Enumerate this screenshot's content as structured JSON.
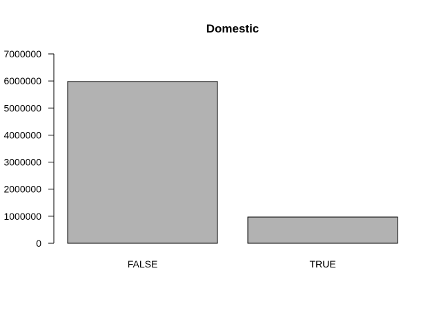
{
  "chart_data": {
    "type": "bar",
    "title": "Domestic",
    "xlabel": "",
    "ylabel": "",
    "categories": [
      "FALSE",
      "TRUE"
    ],
    "values": [
      5980000,
      970000
    ],
    "ylim": [
      0,
      7000000
    ],
    "yticks": [
      0,
      1000000,
      2000000,
      3000000,
      4000000,
      5000000,
      6000000,
      7000000
    ],
    "ytick_labels": [
      "0",
      "1000000",
      "2000000",
      "3000000",
      "4000000",
      "5000000",
      "6000000",
      "7000000"
    ],
    "grid": false,
    "bar_color": "#b2b2b2",
    "edge_color": "#000000"
  }
}
